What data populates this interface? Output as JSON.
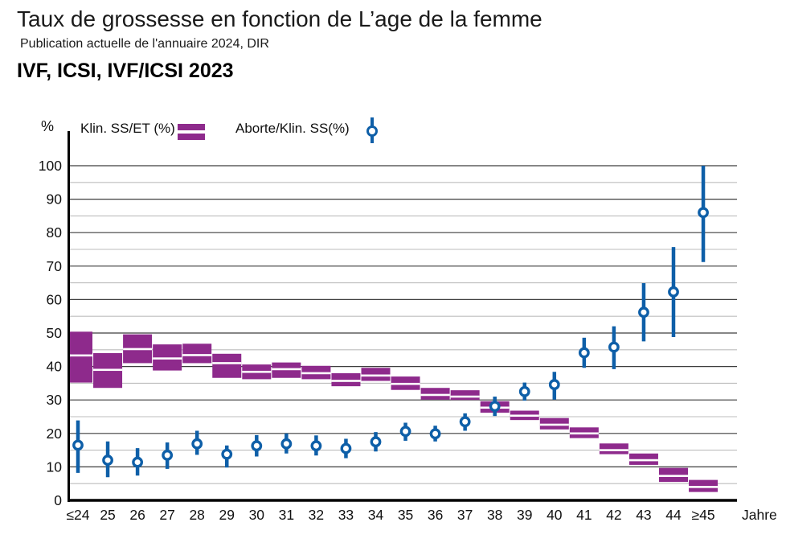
{
  "header": {
    "title": "Taux de grossesse en fonction de L’age de la femme",
    "subtitle": "Publication actuelle de l'annuaire 2024, DIR",
    "heading": "IVF, ICSI, IVF/ICSI 2023"
  },
  "legend": {
    "unit_label": "%",
    "items": [
      {
        "label": "Klin. SS/ET (%)",
        "marker": "double-bar-icon",
        "color": "#8e2a8c"
      },
      {
        "label": "Aborte/Klin. SS(%)",
        "marker": "point-with-errorbar-icon",
        "color": "#0e5fa8"
      }
    ]
  },
  "chart_data": {
    "type": "combo (range-box + scatter with CI)",
    "categories": [
      "≤24",
      "25",
      "26",
      "27",
      "28",
      "29",
      "30",
      "31",
      "32",
      "33",
      "34",
      "35",
      "36",
      "37",
      "38",
      "39",
      "40",
      "41",
      "42",
      "43",
      "44",
      "≥45"
    ],
    "xlabel": "Jahre",
    "ylabel": "%",
    "ylim": [
      0,
      104
    ],
    "yticks_major": [
      0,
      10,
      20,
      30,
      40,
      50,
      60,
      70,
      80,
      90,
      100
    ],
    "yticks_minor": [
      5,
      15,
      25,
      35,
      45,
      55,
      65,
      75,
      85,
      95
    ],
    "grid": true,
    "legend_position": "top",
    "series": [
      {
        "name": "Klin. SS/ET (%)",
        "type": "range-box",
        "color": "#8e2a8c",
        "note": "boxes are [low, mid(white line), high] in %",
        "boxes": [
          [
            35.2,
            43.3,
            50.4
          ],
          [
            33.6,
            39.0,
            44.0
          ],
          [
            41.0,
            45.2,
            49.6
          ],
          [
            38.8,
            42.4,
            46.6
          ],
          [
            41.0,
            43.4,
            46.8
          ],
          [
            36.6,
            41.0,
            43.8
          ],
          [
            36.2,
            38.4,
            40.6
          ],
          [
            36.6,
            39.2,
            41.2
          ],
          [
            36.2,
            38.0,
            40.2
          ],
          [
            34.1,
            35.7,
            38.0
          ],
          [
            35.7,
            37.3,
            39.6
          ],
          [
            33.0,
            34.8,
            37.0
          ],
          [
            30.1,
            31.5,
            33.6
          ],
          [
            30.0,
            31.0,
            32.9
          ],
          [
            26.2,
            27.7,
            29.6
          ],
          [
            24.0,
            25.3,
            26.8
          ],
          [
            21.2,
            22.6,
            24.6
          ],
          [
            18.6,
            20.0,
            21.8
          ],
          [
            13.8,
            15.0,
            17.0
          ],
          [
            10.6,
            12.0,
            14.0
          ],
          [
            5.5,
            7.3,
            9.7
          ],
          [
            2.5,
            4.0,
            6.1
          ]
        ]
      },
      {
        "name": "Aborte/Klin. SS(%)",
        "type": "scatter-with-ci",
        "color": "#0e5fa8",
        "note": "points are [ci_low, value(circle), ci_high] in %",
        "points": [
          [
            8.2,
            16.5,
            23.9
          ],
          [
            6.9,
            12.0,
            17.6
          ],
          [
            7.4,
            11.4,
            15.6
          ],
          [
            9.4,
            13.5,
            17.3
          ],
          [
            13.6,
            16.9,
            20.8
          ],
          [
            9.8,
            13.8,
            16.4
          ],
          [
            13.1,
            16.3,
            19.5
          ],
          [
            14.0,
            16.9,
            20.0
          ],
          [
            13.4,
            16.3,
            19.4
          ],
          [
            12.6,
            15.5,
            18.4
          ],
          [
            14.6,
            17.5,
            20.4
          ],
          [
            17.8,
            20.6,
            23.2
          ],
          [
            17.6,
            19.9,
            22.3
          ],
          [
            20.8,
            23.5,
            26.0
          ],
          [
            25.2,
            28.1,
            31.0
          ],
          [
            29.8,
            32.5,
            35.2
          ],
          [
            30.1,
            34.6,
            38.4
          ],
          [
            39.6,
            44.1,
            48.6
          ],
          [
            39.2,
            45.8,
            52.0
          ],
          [
            47.5,
            56.2,
            64.9
          ],
          [
            48.8,
            62.3,
            75.7
          ],
          [
            71.2,
            86.0,
            100.0
          ]
        ]
      }
    ]
  }
}
